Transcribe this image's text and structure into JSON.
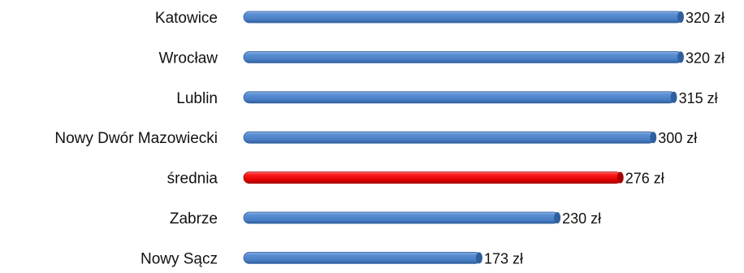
{
  "chart_data": {
    "type": "bar",
    "orientation": "horizontal",
    "title": "",
    "xlabel": "",
    "ylabel": "",
    "categories": [
      "Katowice",
      "Wrocław",
      "Lublin",
      "Nowy Dwór Mazowiecki",
      "średnia",
      "Zabrze",
      "Nowy Sącz"
    ],
    "values": [
      320,
      320,
      315,
      300,
      276,
      230,
      173
    ],
    "value_labels": [
      "320 zł",
      "320 zł",
      "315 zł",
      "300 zł",
      "276 zł",
      "230 zł",
      "173 zł"
    ],
    "xlim": [
      0,
      320
    ],
    "grid": false,
    "legend": "none",
    "colors": {
      "default_bar": "#4a7ec4",
      "default_bar_dark": "#2f5f9e",
      "default_bar_light": "#8fb2e3",
      "highlight_bar": "#ee0000",
      "highlight_bar_dark": "#a80000",
      "highlight_bar_light": "#ff6b6b"
    },
    "highlight_category": "średnia"
  }
}
